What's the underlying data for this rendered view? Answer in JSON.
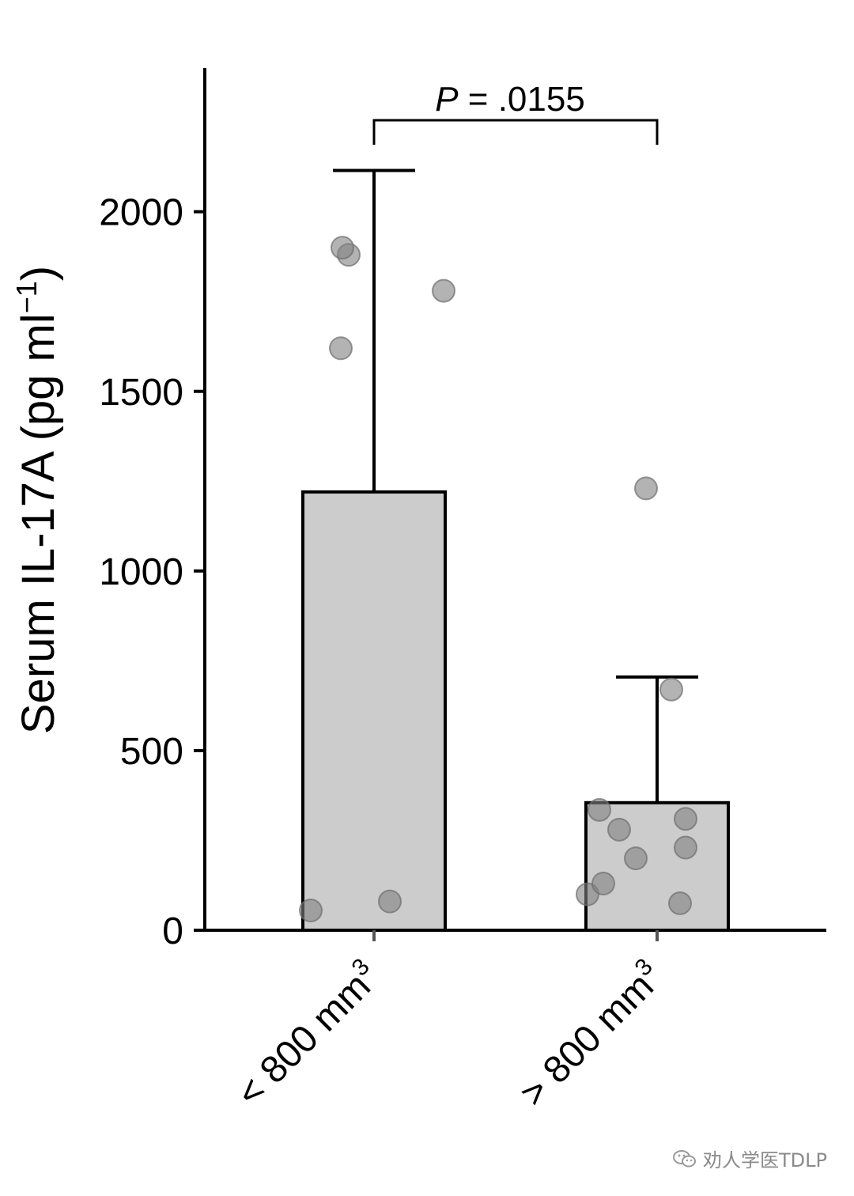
{
  "chart_data": {
    "type": "bar",
    "ylabel": "Serum IL-17A (pg ml",
    "ylabel_sup": "−1",
    "ylabel_close": ")",
    "ylim": [
      0,
      2400
    ],
    "yticks": [
      0,
      500,
      1000,
      1500,
      2000
    ],
    "ytick_labels": [
      "0",
      "500",
      "1000",
      "1500",
      "2000"
    ],
    "categories": [
      {
        "label": "< 800 mm",
        "sup": "3"
      },
      {
        "label": "> 800 mm",
        "sup": "3"
      }
    ],
    "values": [
      1220,
      355
    ],
    "error_upper": [
      2115,
      705
    ],
    "points": [
      [
        55,
        80,
        1620,
        1880,
        1900,
        1780
      ],
      [
        100,
        130,
        335,
        280,
        200,
        1230,
        670,
        310,
        230,
        75
      ]
    ],
    "bar_color": "#cccccc",
    "point_color": "#808080",
    "annotation": {
      "p_label": "P",
      "p_value": " = .0155"
    }
  },
  "watermark": {
    "text": "劝人学医TDLP"
  }
}
